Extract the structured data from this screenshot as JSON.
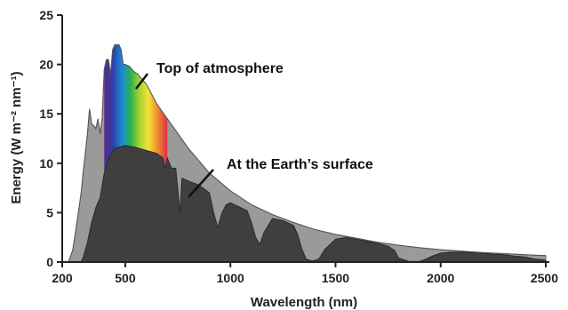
{
  "chart_data": {
    "type": "area",
    "xlabel": "Wavelength (nm)",
    "ylabel": "Energy (W m⁻² nm⁻¹)",
    "xlim": [
      200,
      2500
    ],
    "ylim": [
      0,
      25
    ],
    "x_ticks": [
      "200",
      "500",
      "1000",
      "1500",
      "2000",
      "2500"
    ],
    "y_ticks": [
      "0",
      "5",
      "10",
      "15",
      "20",
      "25"
    ],
    "grid": false,
    "visible_band_nm": [
      400,
      700
    ],
    "colors": {
      "top_fill": "#9a9a9a",
      "surface_fill": "#3f3f3f",
      "axis": "#222222"
    },
    "annotations": [
      {
        "text": "Top of atmosphere",
        "series": "top"
      },
      {
        "text": "At the Earth’s surface",
        "series": "surface"
      }
    ],
    "series": [
      {
        "id": "top",
        "points": [
          [
            230,
            0
          ],
          [
            250,
            1.2
          ],
          [
            270,
            4
          ],
          [
            290,
            7
          ],
          [
            300,
            9.2
          ],
          [
            310,
            11
          ],
          [
            320,
            13
          ],
          [
            330,
            15.5
          ],
          [
            340,
            14
          ],
          [
            350,
            13.8
          ],
          [
            360,
            13.5
          ],
          [
            370,
            14.5
          ],
          [
            380,
            13
          ],
          [
            390,
            14.5
          ],
          [
            400,
            19.5
          ],
          [
            410,
            20.5
          ],
          [
            420,
            20.5
          ],
          [
            430,
            19
          ],
          [
            440,
            21.5
          ],
          [
            450,
            22
          ],
          [
            460,
            22
          ],
          [
            470,
            22
          ],
          [
            480,
            21.5
          ],
          [
            490,
            20
          ],
          [
            500,
            20
          ],
          [
            520,
            19.8
          ],
          [
            540,
            19.3
          ],
          [
            560,
            19
          ],
          [
            580,
            18.5
          ],
          [
            600,
            18
          ],
          [
            650,
            16
          ],
          [
            700,
            14.5
          ],
          [
            750,
            13
          ],
          [
            800,
            11.5
          ],
          [
            900,
            9
          ],
          [
            1000,
            7.2
          ],
          [
            1100,
            5.8
          ],
          [
            1200,
            4.8
          ],
          [
            1300,
            4
          ],
          [
            1400,
            3.3
          ],
          [
            1500,
            2.8
          ],
          [
            1600,
            2.4
          ],
          [
            1700,
            2
          ],
          [
            1800,
            1.7
          ],
          [
            1900,
            1.45
          ],
          [
            2000,
            1.25
          ],
          [
            2100,
            1.1
          ],
          [
            2200,
            0.95
          ],
          [
            2300,
            0.85
          ],
          [
            2400,
            0.75
          ],
          [
            2500,
            0.65
          ]
        ]
      },
      {
        "id": "surface",
        "points": [
          [
            290,
            0
          ],
          [
            300,
            0.5
          ],
          [
            320,
            2
          ],
          [
            340,
            4
          ],
          [
            360,
            5.5
          ],
          [
            380,
            6.5
          ],
          [
            400,
            9
          ],
          [
            420,
            10.5
          ],
          [
            450,
            11.5
          ],
          [
            500,
            11.8
          ],
          [
            550,
            11.6
          ],
          [
            600,
            11.3
          ],
          [
            650,
            11
          ],
          [
            680,
            10.5
          ],
          [
            690,
            9.5
          ],
          [
            700,
            10.5
          ],
          [
            720,
            9.5
          ],
          [
            740,
            9.5
          ],
          [
            760,
            5
          ],
          [
            770,
            8.5
          ],
          [
            800,
            8.2
          ],
          [
            850,
            7.8
          ],
          [
            900,
            7
          ],
          [
            920,
            5
          ],
          [
            940,
            3.5
          ],
          [
            960,
            5
          ],
          [
            980,
            5.8
          ],
          [
            1000,
            6
          ],
          [
            1050,
            5.5
          ],
          [
            1080,
            5.2
          ],
          [
            1100,
            4
          ],
          [
            1120,
            2.5
          ],
          [
            1140,
            1.8
          ],
          [
            1160,
            3
          ],
          [
            1200,
            4.4
          ],
          [
            1250,
            4.2
          ],
          [
            1300,
            3.7
          ],
          [
            1320,
            2.8
          ],
          [
            1340,
            1.3
          ],
          [
            1360,
            0.3
          ],
          [
            1390,
            0.1
          ],
          [
            1420,
            0.3
          ],
          [
            1450,
            1.3
          ],
          [
            1500,
            2.3
          ],
          [
            1550,
            2.5
          ],
          [
            1600,
            2.3
          ],
          [
            1650,
            2.1
          ],
          [
            1700,
            1.9
          ],
          [
            1750,
            1.6
          ],
          [
            1780,
            1.2
          ],
          [
            1800,
            0.4
          ],
          [
            1850,
            0.05
          ],
          [
            1900,
            0.05
          ],
          [
            1930,
            0.3
          ],
          [
            1960,
            0.6
          ],
          [
            2000,
            0.9
          ],
          [
            2050,
            1
          ],
          [
            2100,
            1
          ],
          [
            2150,
            0.95
          ],
          [
            2200,
            0.9
          ],
          [
            2250,
            0.8
          ],
          [
            2300,
            0.75
          ],
          [
            2350,
            0.6
          ],
          [
            2400,
            0.5
          ],
          [
            2450,
            0.3
          ],
          [
            2500,
            0.2
          ]
        ]
      }
    ]
  }
}
